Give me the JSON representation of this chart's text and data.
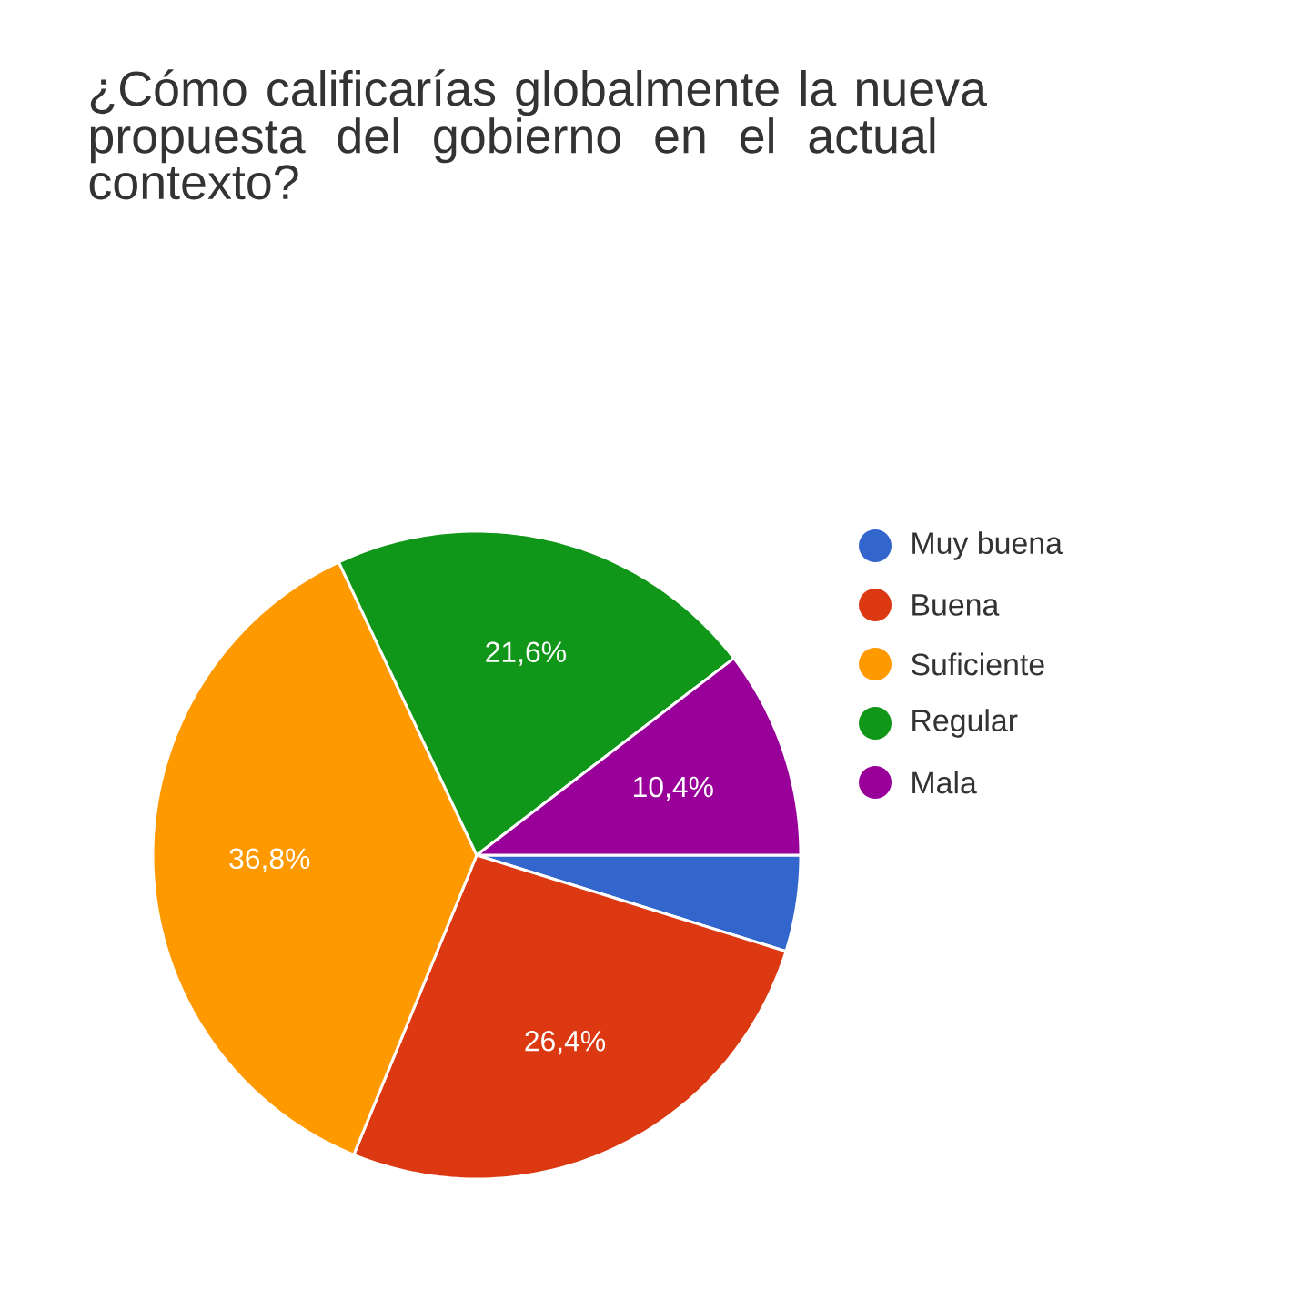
{
  "chart_data": {
    "type": "pie",
    "title": "¿Cómo calificarías globalmente la nueva propuesta del gobierno en el actual contexto?",
    "categories": [
      "Muy buena",
      "Buena",
      "Suficiente",
      "Regular",
      "Mala"
    ],
    "values": [
      4.8,
      26.4,
      36.8,
      21.6,
      10.4
    ],
    "colors": [
      "#3366cc",
      "#dc3912",
      "#ff9900",
      "#109618",
      "#990099"
    ],
    "value_labels": [
      null,
      "26,4%",
      "36,8%",
      "21,6%",
      "10,4%"
    ],
    "legend": "right"
  }
}
